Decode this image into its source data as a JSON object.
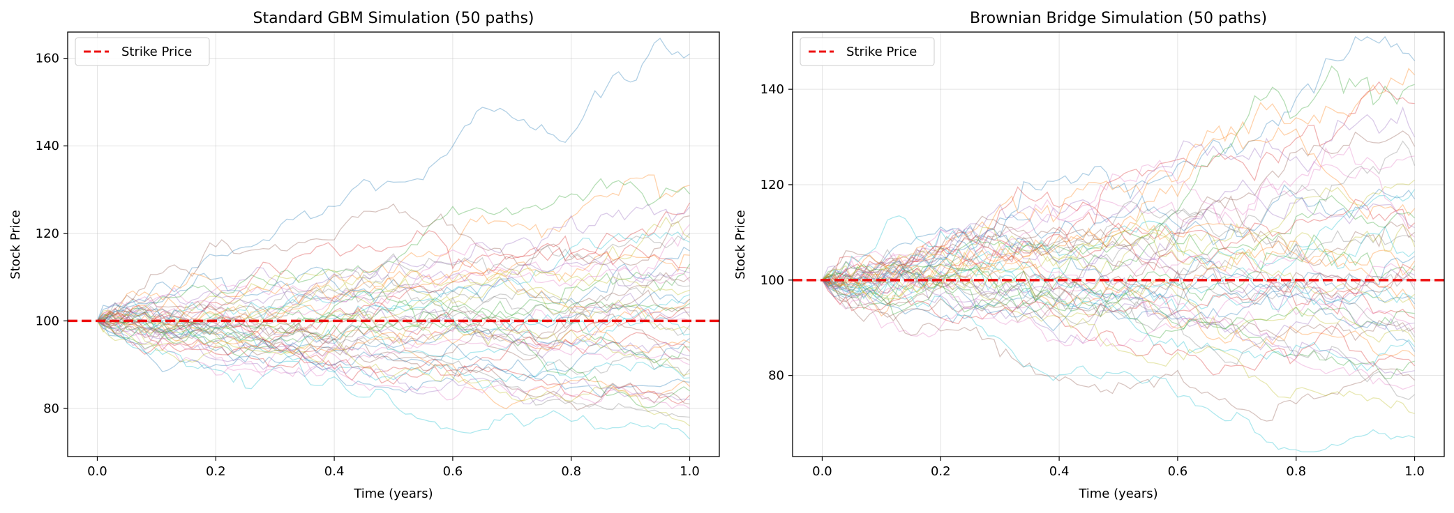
{
  "chart_data": [
    {
      "type": "line",
      "title": "Standard GBM Simulation (50 paths)",
      "xlabel": "Time (years)",
      "ylabel": "Stock Price",
      "xlim": [
        -0.05,
        1.05
      ],
      "ylim": [
        69,
        166
      ],
      "xticks": [
        0.0,
        0.2,
        0.4,
        0.6,
        0.8,
        1.0
      ],
      "xtick_labels": [
        "0.0",
        "0.2",
        "0.4",
        "0.6",
        "0.8",
        "1.0"
      ],
      "yticks": [
        80,
        100,
        120,
        140,
        160
      ],
      "ytick_labels": [
        "80",
        "100",
        "120",
        "140",
        "160"
      ],
      "grid": true,
      "legend": {
        "placement": "top-left",
        "entries": [
          {
            "label": "Strike Price",
            "color": "#ee1111",
            "style": "dashed"
          }
        ]
      },
      "strike_line": {
        "y": 100,
        "label": "Strike Price",
        "color": "#ee1111"
      },
      "paths": {
        "count": 50,
        "start_value": 100,
        "time_start": 0.0,
        "time_end": 1.0,
        "final_values": [
          161,
          131,
          129,
          127,
          126,
          124,
          122,
          120,
          119,
          118,
          116,
          115,
          113,
          112,
          111,
          110,
          109,
          108,
          107,
          106,
          105,
          105,
          104,
          103,
          102,
          101,
          100,
          99,
          98,
          97,
          96,
          95,
          94,
          93,
          92,
          91,
          90,
          89,
          88,
          87,
          86,
          85,
          84,
          83,
          82,
          81,
          80,
          78,
          76,
          73
        ]
      }
    },
    {
      "type": "line",
      "title": "Brownian Bridge Simulation (50 paths)",
      "xlabel": "Time (years)",
      "ylabel": "Stock Price",
      "xlim": [
        -0.05,
        1.05
      ],
      "ylim": [
        63,
        152
      ],
      "xticks": [
        0.0,
        0.2,
        0.4,
        0.6,
        0.8,
        1.0
      ],
      "xtick_labels": [
        "0.0",
        "0.2",
        "0.4",
        "0.6",
        "0.8",
        "1.0"
      ],
      "yticks": [
        80,
        100,
        120,
        140
      ],
      "ytick_labels": [
        "80",
        "100",
        "120",
        "140"
      ],
      "grid": true,
      "legend": {
        "placement": "top-left",
        "entries": [
          {
            "label": "Strike Price",
            "color": "#ee1111",
            "style": "dashed"
          }
        ]
      },
      "strike_line": {
        "y": 100,
        "label": "Strike Price",
        "color": "#ee1111"
      },
      "paths": {
        "count": 50,
        "start_value": 100,
        "time_start": 0.0,
        "time_end": 1.0,
        "final_values": [
          146,
          143,
          141,
          137,
          130,
          128,
          126,
          124,
          121,
          119,
          117,
          115,
          113,
          112,
          111,
          110,
          109,
          108,
          107,
          106,
          105,
          104,
          103,
          102,
          101,
          100,
          99,
          98,
          97,
          96,
          95,
          94,
          93,
          92,
          91,
          90,
          89,
          88,
          87,
          86,
          85,
          84,
          83,
          82,
          81,
          79,
          78,
          76,
          72,
          67
        ]
      }
    }
  ],
  "palette": [
    "#1f77b4",
    "#ff7f0e",
    "#2ca02c",
    "#d62728",
    "#9467bd",
    "#8c564b",
    "#e377c2",
    "#7f7f7f",
    "#bcbd22",
    "#17becf"
  ]
}
